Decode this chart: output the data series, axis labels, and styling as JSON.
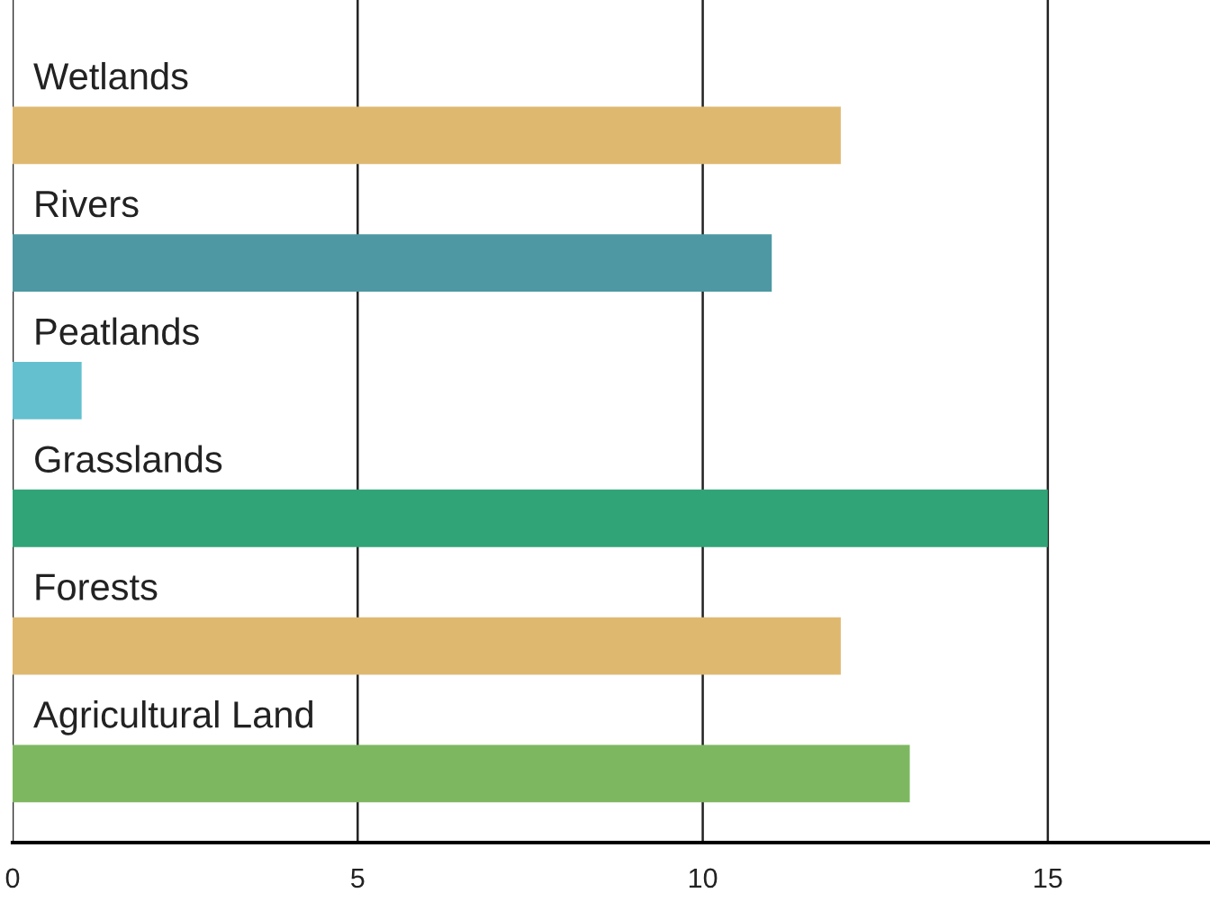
{
  "chart_data": {
    "type": "bar",
    "orientation": "horizontal",
    "categories": [
      "Wetlands",
      "Rivers",
      "Peatlands",
      "Grasslands",
      "Forests",
      "Agricultural Land"
    ],
    "values": [
      12,
      11,
      1,
      15,
      12,
      13
    ],
    "colors": [
      "#dfb870",
      "#4e98a3",
      "#64c0cf",
      "#30a477",
      "#dfb870",
      "#7db861"
    ],
    "xlim": [
      0,
      17.35
    ],
    "xticks": [
      0,
      5,
      10,
      15
    ],
    "grid": "x"
  }
}
